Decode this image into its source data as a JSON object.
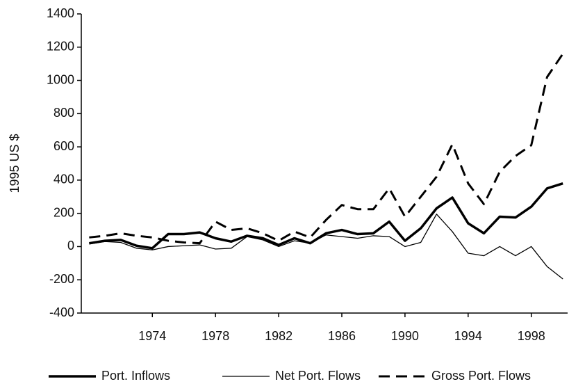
{
  "chart_data": {
    "type": "line",
    "ylabel": "1995 US $",
    "x": [
      1970,
      1971,
      1972,
      1973,
      1974,
      1975,
      1976,
      1977,
      1978,
      1979,
      1980,
      1981,
      1982,
      1983,
      1984,
      1985,
      1986,
      1987,
      1988,
      1989,
      1990,
      1991,
      1992,
      1993,
      1994,
      1995,
      1996,
      1997,
      1998,
      1999,
      2000
    ],
    "series": [
      {
        "name": "Port. Inflows",
        "color": "#000000",
        "line_style": "thick",
        "values": [
          20,
          35,
          40,
          5,
          -10,
          75,
          75,
          85,
          50,
          30,
          65,
          50,
          10,
          50,
          20,
          80,
          100,
          75,
          80,
          150,
          35,
          110,
          230,
          295,
          140,
          80,
          180,
          175,
          240,
          350,
          380
        ]
      },
      {
        "name": "Net Port. Flows",
        "color": "#000000",
        "line_style": "thin",
        "values": [
          15,
          30,
          25,
          -10,
          -20,
          0,
          5,
          10,
          -15,
          -10,
          60,
          40,
          0,
          35,
          20,
          70,
          60,
          50,
          65,
          60,
          0,
          25,
          195,
          90,
          -40,
          -55,
          0,
          -55,
          0,
          -120,
          -195
        ]
      },
      {
        "name": "Gross Port. Flows",
        "color": "#000000",
        "line_style": "dashed",
        "values": [
          55,
          65,
          80,
          65,
          55,
          35,
          25,
          20,
          150,
          100,
          110,
          80,
          35,
          90,
          55,
          160,
          250,
          225,
          225,
          350,
          180,
          300,
          420,
          615,
          380,
          255,
          450,
          545,
          610,
          1020,
          1160
        ]
      }
    ],
    "xlim": [
      1969.5,
      2000.3
    ],
    "xticks": [
      1974,
      1978,
      1982,
      1986,
      1990,
      1994,
      1998
    ],
    "ylim": [
      -400,
      1400
    ],
    "yticks": [
      -400,
      -200,
      0,
      200,
      400,
      600,
      800,
      1000,
      1200,
      1400
    ],
    "grid": false,
    "legend": "bottom"
  }
}
